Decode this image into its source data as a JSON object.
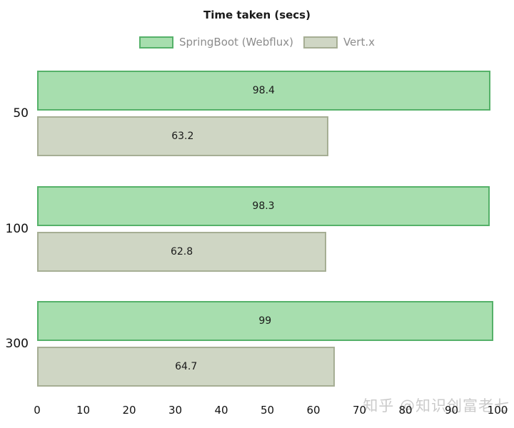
{
  "title": "Time taken (secs)",
  "watermark": "知乎 @知识创富老七",
  "colors": {
    "springboot_fill": "#a7deae",
    "springboot_border": "#55b169",
    "vertx_fill": "#cfd6c4",
    "vertx_border": "#a6ae94",
    "legend_text": "#8c8c8c",
    "title_text": "#1a1a1a",
    "watermark_text": "#cbcbcb"
  },
  "chart_data": {
    "type": "bar",
    "orientation": "horizontal",
    "title": "Time taken (secs)",
    "categories": [
      "50",
      "100",
      "300"
    ],
    "series": [
      {
        "name": "SpringBoot (Webflux)",
        "values": [
          98.4,
          98.3,
          99
        ],
        "display_values": [
          "98.4",
          "98.3",
          "99"
        ]
      },
      {
        "name": "Vert.x",
        "values": [
          63.2,
          62.8,
          64.7
        ],
        "display_values": [
          "63.2",
          "62.8",
          "64.7"
        ]
      }
    ],
    "xlim": [
      0,
      100
    ],
    "x_ticks": [
      0,
      10,
      20,
      30,
      40,
      50,
      60,
      70,
      80,
      90,
      100
    ],
    "grid": false,
    "legend_position": "top",
    "value_labels_inside_bars": true
  }
}
